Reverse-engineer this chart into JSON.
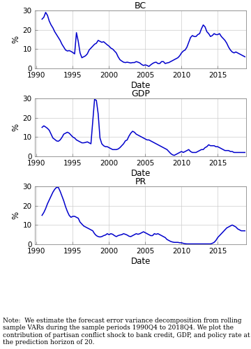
{
  "titles": [
    "BC",
    "GDP",
    "PR"
  ],
  "xlabel": "Date",
  "ylabel": "%",
  "xlim": [
    1989.8,
    2018.9
  ],
  "ylim": [
    0,
    30
  ],
  "yticks": [
    0,
    10,
    20,
    30
  ],
  "xticks": [
    1990,
    1995,
    2000,
    2005,
    2010,
    2015
  ],
  "line_color": "#0000CC",
  "line_width": 1.1,
  "note": "Note:  We estimate the forecast error variance decomposition from rolling sample VARs during the sample periods 1990Q4 to 2018Q4. We plot the contribution of partisan conflict shock to bank credit, GDP, and policy rate at the prediction horizon of 20.",
  "bc_data": [
    25.5,
    26.5,
    29.0,
    27.5,
    24.5,
    22.5,
    21.0,
    19.0,
    17.5,
    16.0,
    14.5,
    12.5,
    11.0,
    9.5,
    9.0,
    9.2,
    8.8,
    8.2,
    7.5,
    18.5,
    14.0,
    8.0,
    5.5,
    6.0,
    6.5,
    7.5,
    9.5,
    10.5,
    11.5,
    12.5,
    13.0,
    14.5,
    14.0,
    13.5,
    13.8,
    13.0,
    12.2,
    11.5,
    10.5,
    10.0,
    9.0,
    8.0,
    6.0,
    4.5,
    3.8,
    3.2,
    3.0,
    3.2,
    3.0,
    2.8,
    3.0,
    3.0,
    3.5,
    3.2,
    2.8,
    2.0,
    1.5,
    1.8,
    1.5,
    1.0,
    1.8,
    2.5,
    3.0,
    3.2,
    2.5,
    2.5,
    3.5,
    3.5,
    2.5,
    2.8,
    3.0,
    3.5,
    4.0,
    4.5,
    5.0,
    5.5,
    6.5,
    8.0,
    9.0,
    9.5,
    11.0,
    13.5,
    16.0,
    17.0,
    16.5,
    16.5,
    17.5,
    18.0,
    20.5,
    22.5,
    21.5,
    19.0,
    18.0,
    16.5,
    17.0,
    18.0,
    17.5,
    17.5,
    18.0,
    16.5,
    15.5,
    14.5,
    13.0,
    11.0,
    9.5,
    8.5,
    8.0,
    8.5,
    8.0,
    7.5,
    7.0,
    6.5,
    6.0
  ],
  "gdp_data": [
    15.0,
    15.8,
    15.2,
    14.5,
    13.5,
    11.5,
    9.5,
    8.8,
    8.0,
    7.8,
    8.5,
    9.8,
    11.5,
    12.0,
    12.5,
    12.0,
    11.0,
    10.0,
    9.5,
    8.5,
    8.0,
    7.5,
    7.0,
    7.0,
    7.2,
    7.5,
    7.0,
    6.5,
    18.0,
    29.5,
    29.0,
    22.0,
    9.5,
    6.5,
    5.5,
    5.0,
    5.0,
    4.5,
    4.0,
    3.5,
    3.5,
    3.5,
    3.8,
    4.5,
    5.5,
    6.5,
    8.0,
    8.5,
    10.5,
    12.0,
    13.0,
    12.5,
    11.5,
    11.0,
    10.5,
    10.0,
    9.5,
    9.0,
    8.5,
    8.5,
    8.0,
    7.5,
    7.0,
    6.5,
    6.0,
    5.5,
    5.0,
    4.5,
    4.0,
    3.5,
    2.5,
    1.5,
    0.8,
    0.5,
    1.0,
    1.5,
    2.0,
    2.5,
    2.0,
    2.5,
    3.0,
    3.5,
    2.5,
    2.0,
    2.0,
    2.0,
    2.5,
    3.0,
    3.5,
    3.5,
    4.5,
    5.0,
    6.0,
    5.5,
    5.5,
    5.5,
    5.0,
    5.0,
    4.5,
    4.0,
    3.5,
    3.0,
    3.0,
    3.0,
    2.5,
    2.5,
    2.0,
    2.0,
    2.0,
    2.0,
    2.0
  ],
  "pr_data": [
    15.0,
    16.5,
    18.5,
    21.0,
    23.0,
    25.0,
    27.0,
    28.5,
    29.5,
    29.5,
    27.5,
    25.0,
    22.5,
    19.5,
    17.0,
    15.0,
    14.0,
    14.5,
    14.5,
    14.0,
    13.5,
    11.5,
    10.5,
    9.5,
    9.0,
    8.5,
    8.0,
    7.5,
    7.0,
    5.5,
    4.5,
    4.0,
    3.8,
    4.0,
    4.5,
    4.8,
    5.5,
    5.0,
    5.5,
    5.2,
    4.5,
    4.0,
    4.5,
    4.8,
    5.0,
    5.5,
    5.2,
    4.8,
    4.2,
    4.0,
    4.5,
    5.0,
    5.5,
    5.2,
    5.5,
    6.0,
    6.5,
    6.0,
    5.5,
    5.0,
    4.5,
    4.5,
    5.5,
    5.2,
    5.5,
    5.0,
    4.5,
    4.0,
    3.5,
    2.5,
    2.0,
    1.5,
    1.2,
    1.0,
    1.0,
    1.0,
    0.8,
    0.8,
    0.5,
    0.3,
    0.2,
    0.2,
    0.2,
    0.2,
    0.2,
    0.2,
    0.2,
    0.2,
    0.2,
    0.2,
    0.2,
    0.2,
    0.2,
    0.2,
    0.5,
    1.0,
    2.0,
    3.5,
    4.5,
    5.5,
    6.5,
    7.5,
    8.5,
    9.0,
    9.5,
    10.0,
    9.5,
    9.0,
    8.0,
    7.5,
    7.0
  ]
}
